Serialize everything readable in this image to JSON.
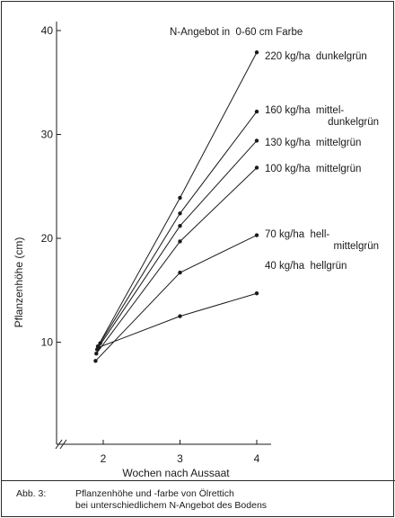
{
  "chart_data": {
    "type": "line",
    "x": [
      2,
      3,
      4
    ],
    "xlabel": "Wochen nach Aussaat",
    "ylabel": "Pflanzenhöhe (cm)",
    "ylim": [
      0,
      40
    ],
    "y_ticks": [
      10,
      20,
      30,
      40
    ],
    "x_ticks": [
      2,
      3,
      4
    ],
    "legend_header": "N-Angebot in  0-60 cm Farbe",
    "grid": false,
    "series": [
      {
        "name": "220 kg/ha  dunkelgrün",
        "name_lines": [
          "220 kg/ha  dunkelgrün"
        ],
        "points": [
          [
            1.93,
            9.6
          ],
          [
            3,
            23.9
          ],
          [
            4,
            37.9
          ]
        ]
      },
      {
        "name": "160 kg/ha  mittel-dunkelgrün",
        "name_lines": [
          "160 kg/ha  mittel-",
          "dunkelgrün"
        ],
        "points": [
          [
            1.96,
            9.9
          ],
          [
            3,
            22.4
          ],
          [
            4,
            32.2
          ]
        ]
      },
      {
        "name": "130 kg/ha  mittelgrün",
        "name_lines": [
          "130 kg/ha  mittelgrün"
        ],
        "points": [
          [
            1.92,
            9.3
          ],
          [
            3,
            21.2
          ],
          [
            4,
            29.4
          ]
        ]
      },
      {
        "name": "100 kg/ha  mittelgrün",
        "name_lines": [
          "100 kg/ha  mittelgrün"
        ],
        "points": [
          [
            1.91,
            8.9
          ],
          [
            3,
            19.7
          ],
          [
            4,
            26.8
          ]
        ]
      },
      {
        "name": "70 kg/ha  hell-mittelgrün",
        "name_lines": [
          "70 kg/ha  hell-",
          "mittelgrün"
        ],
        "points": [
          [
            1.9,
            8.2
          ],
          [
            3,
            16.7
          ],
          [
            4,
            20.3
          ]
        ]
      },
      {
        "name": "40 kg/ha  hellgrün",
        "name_lines": [
          "40 kg/ha  hellgrün"
        ],
        "points": [
          [
            1.94,
            9.5
          ],
          [
            3,
            12.5
          ],
          [
            4,
            14.7
          ]
        ]
      }
    ]
  },
  "caption": {
    "label": "Abb. 3:",
    "line1": "Pflanzenhöhe und -farbe von Ölrettich",
    "line2": "bei unterschiedlichem N-Angebot des Bodens"
  },
  "colors": {
    "ink": "#1a1a1a",
    "background": "#ffffff"
  }
}
